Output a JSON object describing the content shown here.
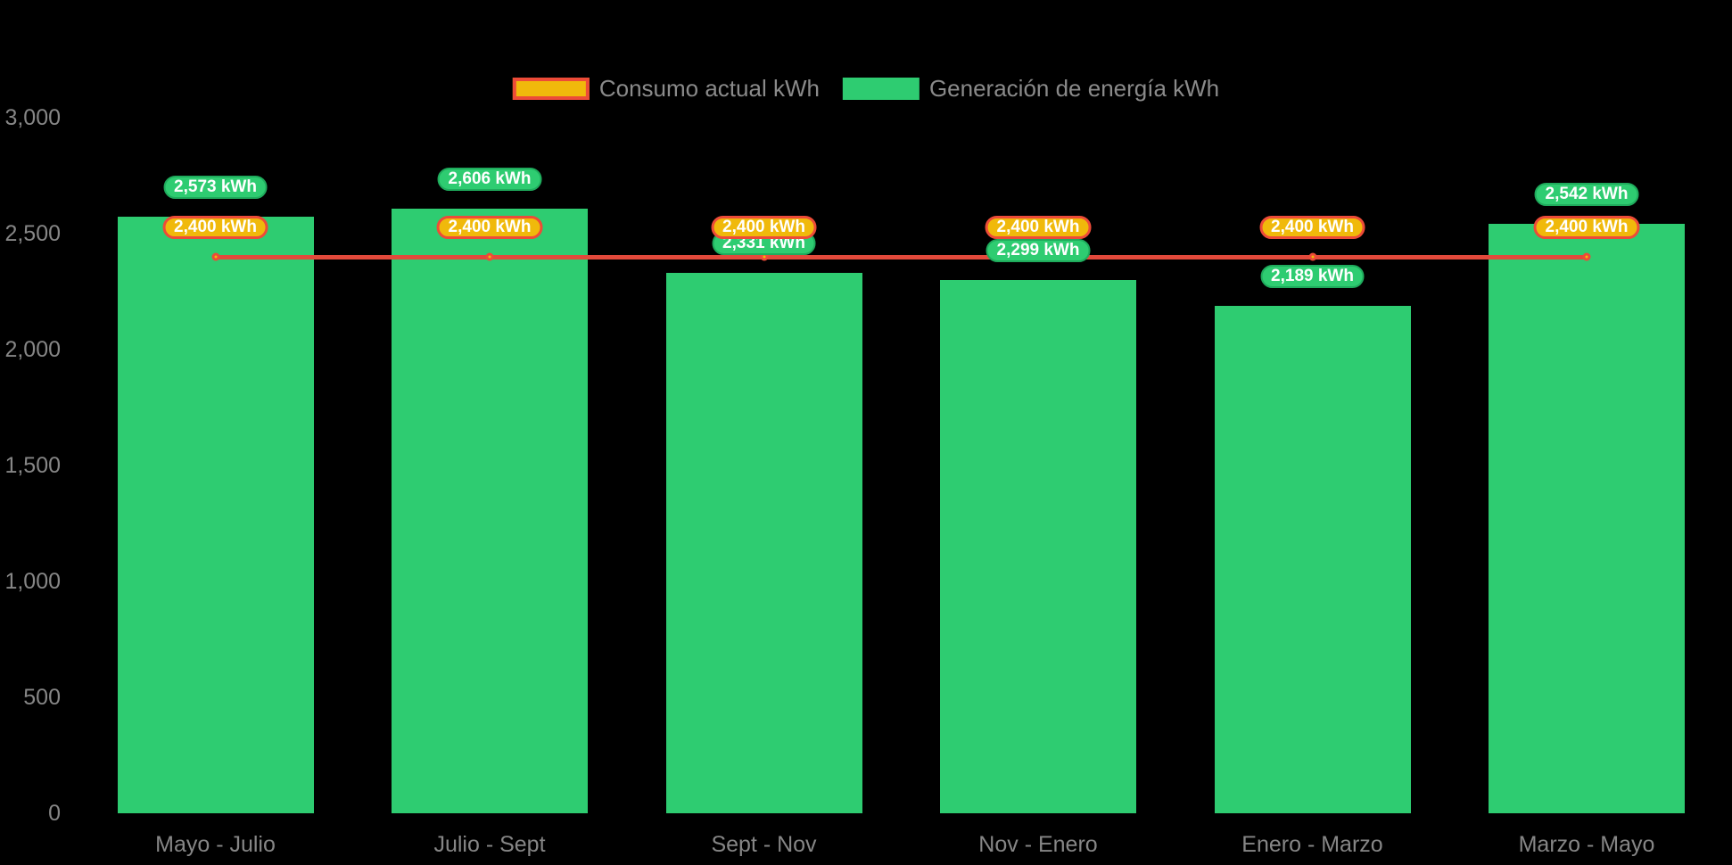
{
  "chart_data": {
    "type": "bar",
    "title": "",
    "categories": [
      "Mayo - Julio",
      "Julio - Sept",
      "Sept - Nov",
      "Nov - Enero",
      "Enero - Marzo",
      "Marzo - Mayo"
    ],
    "series": [
      {
        "name": "Consumo actual kWh",
        "type": "line",
        "values": [
          2400,
          2400,
          2400,
          2400,
          2400,
          2400
        ],
        "labels": [
          "2,400 kWh",
          "2,400 kWh",
          "2,400 kWh",
          "2,400 kWh",
          "2,400 kWh",
          "2,400 kWh"
        ],
        "color": "#e2493b",
        "marker_fill": "#f0b90b",
        "marker_border": "#ed4b38"
      },
      {
        "name": "Generación de energía kWh",
        "type": "bar",
        "values": [
          2573,
          2606,
          2331,
          2299,
          2189,
          2542
        ],
        "labels": [
          "2,573 kWh",
          "2,606 kWh",
          "2,331 kWh",
          "2,299 kWh",
          "2,189 kWh",
          "2,542 kWh"
        ],
        "color": "#2ecc71"
      }
    ],
    "ylim": [
      0,
      3000
    ],
    "yticks": [
      0,
      500,
      1000,
      1500,
      2000,
      2500,
      3000
    ],
    "ytick_labels": [
      "0",
      "500",
      "1,000",
      "1,500",
      "2,000",
      "2,500",
      "3,000"
    ],
    "xlabel": "",
    "ylabel": "",
    "grid": false,
    "legend_position": "top"
  },
  "legend": {
    "consumo_label": "Consumo actual kWh",
    "generacion_label": "Generación de energía kWh"
  },
  "colors": {
    "background": "#000000",
    "bar_green": "#2ecc71",
    "badge_green_border": "#1fab5c",
    "badge_orange_fill": "#f0b90b",
    "badge_orange_border": "#ed4b38",
    "line_red": "#e2493b",
    "axis_text": "#868686",
    "badge_text": "#ffffff"
  }
}
